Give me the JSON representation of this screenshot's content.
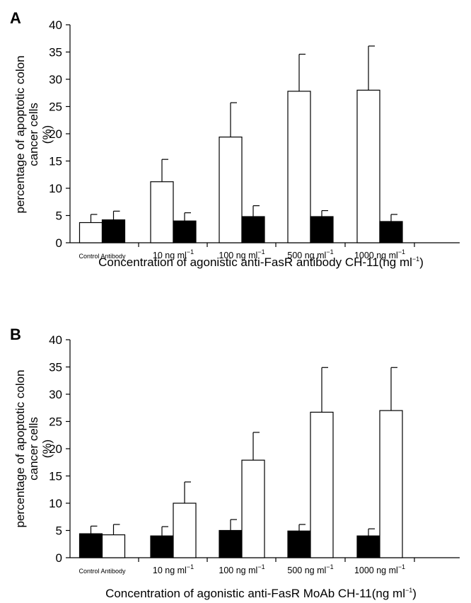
{
  "chart_data": [
    {
      "panel": "A",
      "type": "bar",
      "ylabel_lines": [
        "percentage of apoptotic colon",
        "cancer cells",
        "(%)"
      ],
      "xlabel": "Concentration of agonistic anti-FasR antibody CH-11(ng ml",
      "xlabel_sup": "−1",
      "xlabel_tail": ")",
      "ylim": [
        0,
        40
      ],
      "yticks": [
        "0",
        "5",
        "10",
        "15",
        "20",
        "25",
        "30",
        "35",
        "40"
      ],
      "categories": [
        {
          "label": "Control Antibody",
          "small": true
        },
        {
          "label": "10 ng ml",
          "sup": "−1"
        },
        {
          "label": "100 ng ml",
          "sup": "−1"
        },
        {
          "label": "500 ng ml",
          "sup": "−1"
        },
        {
          "label": "1000 ng ml",
          "sup": "−1"
        }
      ],
      "series": [
        {
          "fill": "#ffffff",
          "values": [
            3.7,
            11.2,
            19.4,
            27.8,
            28.0
          ],
          "errors": [
            1.5,
            4.1,
            6.3,
            6.8,
            8.1
          ]
        },
        {
          "fill": "#000000",
          "values": [
            4.2,
            4.0,
            4.8,
            4.8,
            3.9
          ],
          "errors": [
            1.6,
            1.5,
            2.0,
            1.1,
            1.3
          ]
        }
      ]
    },
    {
      "panel": "B",
      "type": "bar",
      "ylabel_lines": [
        "percentage of apoptotic colon",
        "cancer cells",
        "(%)"
      ],
      "xlabel": "Concentration of agonistic anti-FasR MoAb CH-11(ng ml",
      "xlabel_sup": "−1",
      "xlabel_tail": ")",
      "ylim": [
        0,
        40
      ],
      "yticks": [
        "0",
        "5",
        "10",
        "15",
        "20",
        "25",
        "30",
        "35",
        "40"
      ],
      "categories": [
        {
          "label": "Control Antibody",
          "small": true
        },
        {
          "label": "10 ng ml",
          "sup": "−1"
        },
        {
          "label": "100 ng ml",
          "sup": "−1"
        },
        {
          "label": "500 ng ml",
          "sup": "−1"
        },
        {
          "label": "1000 ng ml",
          "sup": "−1"
        }
      ],
      "series": [
        {
          "fill": "#000000",
          "values": [
            4.4,
            4.0,
            5.0,
            4.9,
            4.0
          ],
          "errors": [
            1.4,
            1.7,
            2.0,
            1.2,
            1.3
          ]
        },
        {
          "fill": "#ffffff",
          "values": [
            4.2,
            10.0,
            17.9,
            26.7,
            27.0
          ],
          "errors": [
            1.9,
            3.9,
            5.1,
            8.2,
            7.9
          ]
        }
      ]
    }
  ]
}
